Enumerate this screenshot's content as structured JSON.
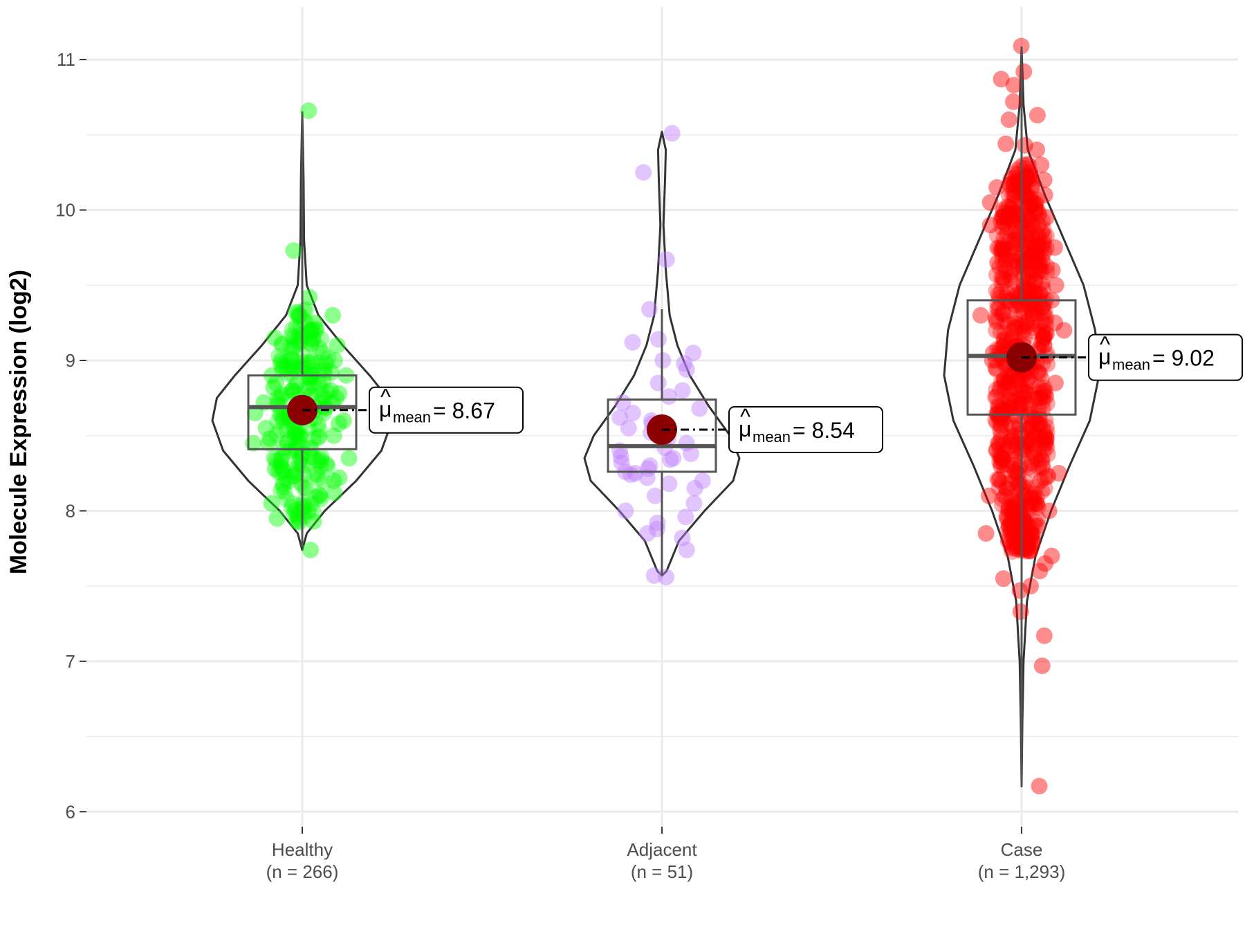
{
  "chart_data": {
    "type": "violin",
    "title": "",
    "ylabel": "Molecule Expression (log2)",
    "xlabel": "",
    "ylim": [
      5.9,
      11.35
    ],
    "yticks": [
      6,
      7,
      8,
      9,
      10,
      11
    ],
    "ytick_labels": [
      "6",
      "7",
      "8",
      "9",
      "10",
      "11"
    ],
    "grid": true,
    "groups": [
      {
        "name": "Healthy",
        "n_label": "(n = 266)",
        "color": "#00FF00",
        "box": {
          "q1": 8.41,
          "median": 8.69,
          "q3": 8.9,
          "whisker_low": 7.76,
          "whisker_high": 10.64
        },
        "mean": 8.67,
        "mean_label": "8.67",
        "violin": [
          [
            7.74,
            0.0
          ],
          [
            7.85,
            0.05
          ],
          [
            8.0,
            0.25
          ],
          [
            8.2,
            0.6
          ],
          [
            8.4,
            0.88
          ],
          [
            8.6,
            1.0
          ],
          [
            8.75,
            0.95
          ],
          [
            8.9,
            0.75
          ],
          [
            9.1,
            0.45
          ],
          [
            9.3,
            0.18
          ],
          [
            9.5,
            0.05
          ],
          [
            9.8,
            0.02
          ],
          [
            10.2,
            0.015
          ],
          [
            10.65,
            0.0
          ]
        ],
        "points": [
          10.66,
          9.73,
          9.42,
          9.3,
          9.25,
          9.2,
          9.15,
          9.1,
          9.05,
          9.0,
          8.98,
          8.95,
          8.92,
          8.9,
          8.88,
          8.85,
          8.82,
          8.8,
          8.78,
          8.75,
          8.72,
          8.7,
          8.68,
          8.66,
          8.64,
          8.62,
          8.6,
          8.58,
          8.55,
          8.52,
          8.5,
          8.48,
          8.45,
          8.42,
          8.4,
          8.38,
          8.35,
          8.32,
          8.3,
          8.28,
          8.25,
          8.22,
          8.2,
          8.18,
          8.15,
          8.12,
          8.1,
          8.05,
          8.0,
          7.95,
          7.93,
          8.0,
          7.74,
          8.7,
          8.6,
          8.8,
          8.5,
          8.9,
          8.4,
          8.65,
          8.75,
          8.55,
          8.85,
          8.45,
          9.0,
          8.3,
          8.95,
          8.35,
          8.72,
          8.62
        ]
      },
      {
        "name": "Adjacent",
        "n_label": "(n = 51)",
        "color": "#BF7FFF",
        "box": {
          "q1": 8.26,
          "median": 8.43,
          "q3": 8.74,
          "whisker_low": 7.57,
          "whisker_high": 9.34
        },
        "mean": 8.54,
        "mean_label": "8.54",
        "violin": [
          [
            7.57,
            0.0
          ],
          [
            7.6,
            0.06
          ],
          [
            7.8,
            0.22
          ],
          [
            8.0,
            0.55
          ],
          [
            8.2,
            0.92
          ],
          [
            8.35,
            1.0
          ],
          [
            8.5,
            0.88
          ],
          [
            8.7,
            0.6
          ],
          [
            8.9,
            0.36
          ],
          [
            9.1,
            0.2
          ],
          [
            9.3,
            0.1
          ],
          [
            9.6,
            0.05
          ],
          [
            9.9,
            0.02
          ],
          [
            10.2,
            0.04
          ],
          [
            10.4,
            0.05
          ],
          [
            10.52,
            0.0
          ]
        ],
        "points": [
          10.51,
          10.25,
          9.67,
          9.34,
          9.14,
          9.12,
          9.05,
          9.0,
          8.98,
          8.94,
          8.85,
          8.8,
          8.76,
          8.72,
          8.68,
          8.65,
          8.62,
          8.6,
          8.58,
          8.55,
          8.52,
          8.5,
          8.48,
          8.45,
          8.42,
          8.4,
          8.38,
          8.36,
          8.34,
          8.32,
          8.3,
          8.28,
          8.26,
          8.24,
          8.22,
          8.2,
          8.18,
          8.15,
          8.1,
          8.05,
          8.0,
          7.96,
          7.92,
          7.88,
          7.85,
          7.82,
          7.74,
          7.57,
          7.56,
          8.25,
          8.35
        ]
      },
      {
        "name": "Case",
        "n_label": "(n = 1,293)",
        "color": "#FF0000",
        "box": {
          "q1": 8.64,
          "median": 9.03,
          "q3": 9.4,
          "whisker_low": 6.17,
          "whisker_high": 11.08
        },
        "mean": 9.02,
        "mean_label": "9.02",
        "violin": [
          [
            6.17,
            0.0
          ],
          [
            6.6,
            0.01
          ],
          [
            7.0,
            0.025
          ],
          [
            7.4,
            0.07
          ],
          [
            7.7,
            0.18
          ],
          [
            8.0,
            0.38
          ],
          [
            8.3,
            0.62
          ],
          [
            8.6,
            0.88
          ],
          [
            8.9,
            1.0
          ],
          [
            9.2,
            0.95
          ],
          [
            9.5,
            0.8
          ],
          [
            9.8,
            0.55
          ],
          [
            10.1,
            0.3
          ],
          [
            10.4,
            0.08
          ],
          [
            10.7,
            0.025
          ],
          [
            11.08,
            0.0
          ]
        ],
        "points": [
          11.09,
          10.92,
          10.87,
          10.83,
          10.72,
          10.63,
          10.6,
          10.44,
          10.43,
          10.4,
          10.3,
          10.25,
          10.2,
          10.15,
          10.1,
          10.05,
          10.0,
          9.95,
          9.9,
          9.85,
          9.8,
          9.75,
          9.7,
          9.65,
          9.6,
          9.55,
          9.5,
          9.45,
          9.4,
          9.35,
          9.3,
          9.25,
          9.2,
          9.15,
          9.1,
          9.05,
          9.0,
          8.95,
          8.9,
          8.85,
          8.8,
          8.75,
          8.7,
          8.65,
          8.6,
          8.55,
          8.5,
          8.45,
          8.4,
          8.35,
          8.3,
          8.25,
          8.2,
          8.15,
          8.1,
          8.05,
          8.0,
          7.95,
          7.9,
          7.85,
          7.8,
          7.75,
          7.7,
          7.65,
          7.6,
          7.55,
          7.5,
          7.47,
          7.33,
          7.17,
          6.97,
          6.17
        ]
      }
    ]
  }
}
